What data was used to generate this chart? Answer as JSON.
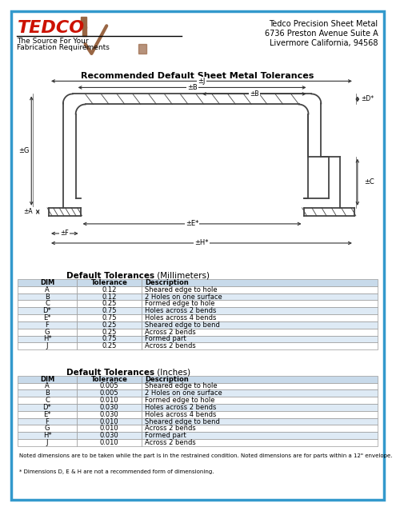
{
  "title_main": "Recommended Default Sheet Metal Tolerances",
  "company_name": "Tedco Precision Sheet Metal",
  "company_address1": "6736 Preston Avenue Suite A",
  "company_address2": "Livermore California, 94568",
  "company_tagline1": "The Source For Your",
  "company_tagline2": "Fabrication Requirements",
  "table1_title_bold": "Default Tolerances",
  "table1_title_normal": " (Millimeters)",
  "table2_title_bold": "Default Tolerances",
  "table2_title_normal": " (Inches)",
  "table_headers": [
    "DIM",
    "Tolerance",
    "Description"
  ],
  "mm_data": [
    [
      "A",
      "0.12",
      "Sheared edge to hole"
    ],
    [
      "B",
      "0.12",
      "2 Holes on one surface"
    ],
    [
      "C",
      "0.25",
      "Formed edge to hole"
    ],
    [
      "D*",
      "0.75",
      "Holes across 2 bends"
    ],
    [
      "E*",
      "0.75",
      "Holes across 4 bends"
    ],
    [
      "F",
      "0.25",
      "Sheared edge to bend"
    ],
    [
      "G",
      "0.25",
      "Across 2 bends"
    ],
    [
      "H*",
      "0.75",
      "Formed part"
    ],
    [
      "J",
      "0.25",
      "Across 2 bends"
    ]
  ],
  "in_data": [
    [
      "A",
      "0.005",
      "Sheared edge to hole"
    ],
    [
      "B",
      "0.005",
      "2 Holes on one surface"
    ],
    [
      "C",
      "0.010",
      "Formed edge to hole"
    ],
    [
      "D*",
      "0.030",
      "Holes across 2 bends"
    ],
    [
      "E*",
      "0.030",
      "Holes across 4 bends"
    ],
    [
      "F",
      "0.010",
      "Sheared edge to bend"
    ],
    [
      "G",
      "0.010",
      "Across 2 bends"
    ],
    [
      "H*",
      "0.030",
      "Formed part"
    ],
    [
      "J",
      "0.010",
      "Across 2 bends"
    ]
  ],
  "footer1": "Noted dimensions are to be taken while the part is in the restrained condition. Noted dimensions are for parts within a 12\" envelope.",
  "footer2": "* Dimensions D, E & H are not a recommended form of dimensioning.",
  "header_fill": "#c8daea",
  "row_fill_alt": "#deeaf5",
  "row_fill_normal": "#ffffff",
  "border_color": "#999999",
  "outer_border": "#3399cc",
  "bg_color": "#ffffff",
  "tedco_red": "#cc1100",
  "brown_check": "#996644"
}
